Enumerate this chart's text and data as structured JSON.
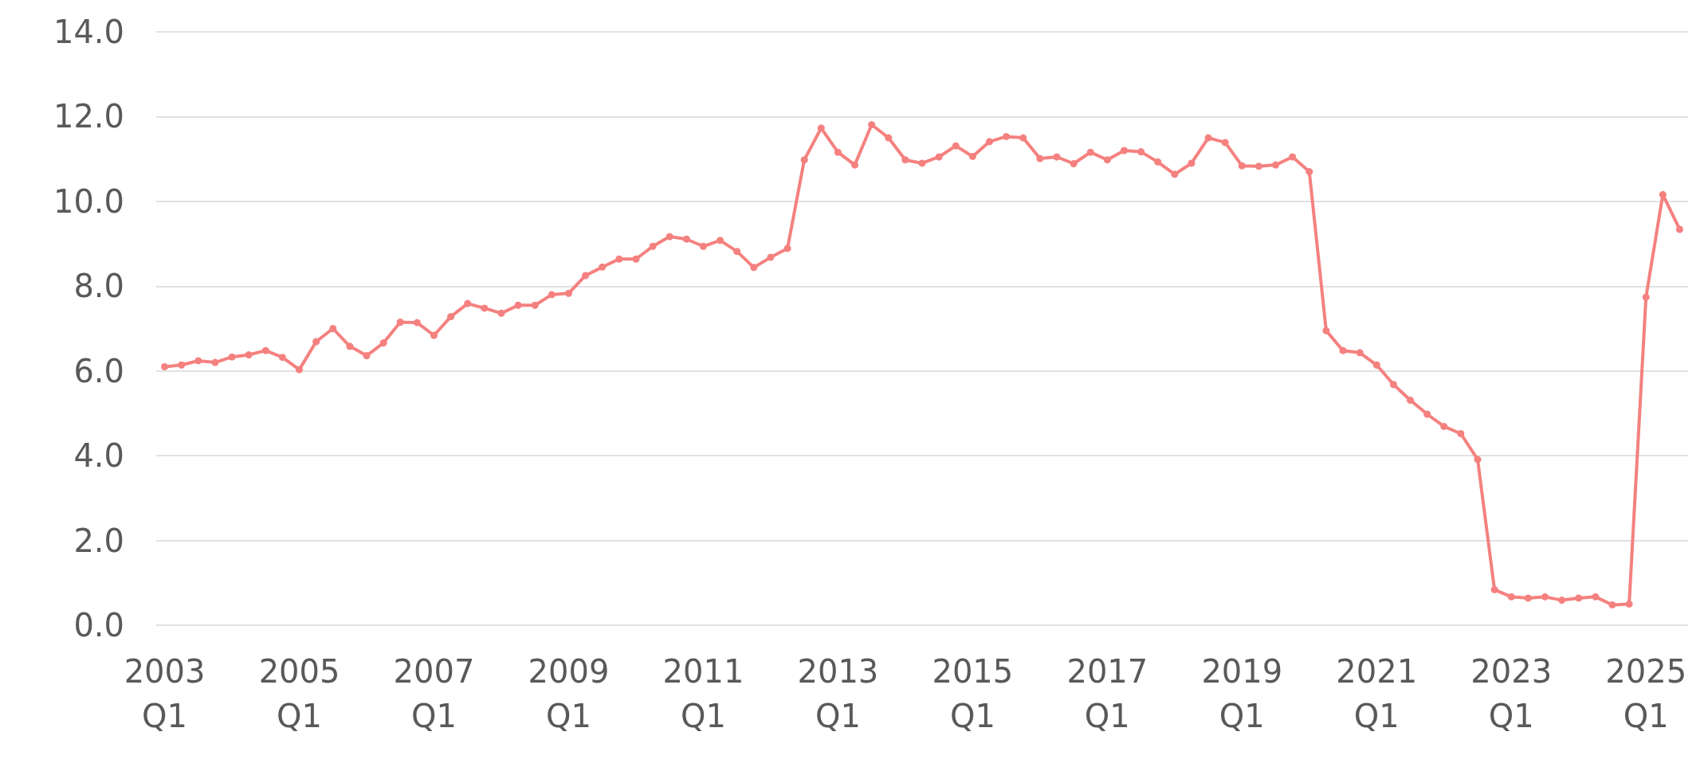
{
  "chart_data": {
    "type": "line",
    "categories": [
      "2003\nQ1",
      null,
      null,
      null,
      null,
      null,
      null,
      null,
      "2005\nQ1",
      null,
      null,
      null,
      null,
      null,
      null,
      null,
      "2007\nQ1",
      null,
      null,
      null,
      null,
      null,
      null,
      null,
      "2009\nQ1",
      null,
      null,
      null,
      null,
      null,
      null,
      null,
      "2011\nQ1",
      null,
      null,
      null,
      null,
      null,
      null,
      null,
      "2013\nQ1",
      null,
      null,
      null,
      null,
      null,
      null,
      null,
      "2015\nQ1",
      null,
      null,
      null,
      null,
      null,
      null,
      null,
      "2017\nQ1",
      null,
      null,
      null,
      null,
      null,
      null,
      null,
      "2019\nQ1",
      null,
      null,
      null,
      null,
      null,
      null,
      null,
      "2021\nQ1",
      null,
      null,
      null,
      null,
      null,
      null,
      null,
      "2023\nQ1",
      null,
      null,
      null,
      null,
      null,
      null,
      null,
      "2025\nQ1",
      null,
      null
    ],
    "series": [
      {
        "color": "#f4817f",
        "values": [
          6.1,
          6.14,
          6.24,
          6.2,
          6.33,
          6.38,
          6.48,
          6.32,
          6.03,
          6.69,
          7.0,
          6.58,
          6.36,
          6.66,
          7.15,
          7.14,
          6.84,
          7.28,
          7.59,
          7.48,
          7.36,
          7.55,
          7.55,
          7.8,
          7.83,
          8.25,
          8.45,
          8.64,
          8.64,
          8.94,
          9.17,
          9.11,
          8.94,
          9.08,
          8.82,
          8.44,
          8.68,
          8.89,
          10.98,
          11.73,
          11.16,
          10.86,
          11.81,
          11.5,
          10.98,
          10.9,
          11.05,
          11.31,
          11.06,
          11.41,
          11.53,
          11.5,
          11.01,
          11.05,
          10.89,
          11.16,
          10.98,
          11.2,
          11.17,
          10.93,
          10.64,
          10.9,
          11.5,
          11.39,
          10.84,
          10.83,
          10.86,
          11.05,
          10.7,
          6.95,
          6.48,
          6.43,
          6.14,
          5.68,
          5.31,
          4.98,
          4.69,
          4.52,
          3.91,
          0.84,
          0.67,
          0.64,
          0.67,
          0.59,
          0.64,
          0.67,
          0.48,
          0.5,
          7.74,
          10.16,
          9.34
        ]
      }
    ],
    "ylim": [
      0,
      14
    ],
    "yticks": [
      {
        "value": 0,
        "label": "0.0"
      },
      {
        "value": 2,
        "label": "2.0"
      },
      {
        "value": 4,
        "label": "4.0"
      },
      {
        "value": 6,
        "label": "6.0"
      },
      {
        "value": 8,
        "label": "8.0"
      },
      {
        "value": 10,
        "label": "10.0"
      },
      {
        "value": 12,
        "label": "12.0"
      },
      {
        "value": 14,
        "label": "14.0"
      }
    ],
    "grid": "y",
    "marker": "circle",
    "line_style": "solid"
  }
}
